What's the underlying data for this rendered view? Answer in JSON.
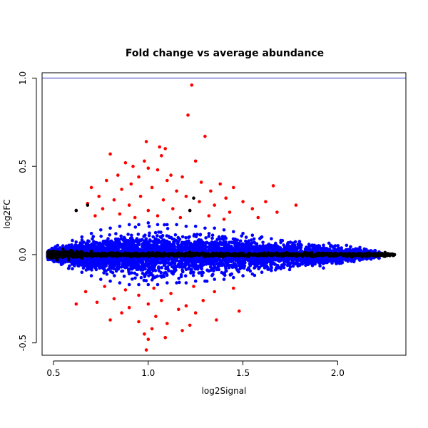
{
  "chart_data": {
    "type": "scatter",
    "title": "Fold change vs average abundance",
    "xlabel": "log2Signal",
    "ylabel": "log2FC",
    "xlim": [
      0.44,
      2.36
    ],
    "ylim": [
      -0.57,
      1.03
    ],
    "x_ticks": [
      0.5,
      1.0,
      1.5,
      2.0
    ],
    "x_tick_labels": [
      "0.5",
      "1.0",
      "1.5",
      "2.0"
    ],
    "y_ticks": [
      -0.5,
      0.0,
      0.5,
      1.0
    ],
    "y_tick_labels": [
      "-0.5",
      "0.0",
      "0.5",
      "1.0"
    ],
    "grid": false,
    "reference_line": {
      "orientation": "horizontal",
      "y": 1.0,
      "color": "#3c3cc8"
    },
    "point_colors": {
      "black": "#000000",
      "blue": "#0000ff",
      "red": "#ff0000"
    },
    "series": [
      {
        "color": "#ff0000",
        "points": [
          [
            1.23,
            0.96
          ],
          [
            1.21,
            0.79
          ],
          [
            1.3,
            0.67
          ],
          [
            0.99,
            0.64
          ],
          [
            1.06,
            0.61
          ],
          [
            1.09,
            0.6
          ],
          [
            0.8,
            0.57
          ],
          [
            1.07,
            0.56
          ],
          [
            0.88,
            0.52
          ],
          [
            0.98,
            0.53
          ],
          [
            1.25,
            0.53
          ],
          [
            0.92,
            0.5
          ],
          [
            1.0,
            0.49
          ],
          [
            1.05,
            0.48
          ],
          [
            1.12,
            0.45
          ],
          [
            0.84,
            0.45
          ],
          [
            0.95,
            0.44
          ],
          [
            1.18,
            0.44
          ],
          [
            1.1,
            0.42
          ],
          [
            0.78,
            0.42
          ],
          [
            1.28,
            0.41
          ],
          [
            0.91,
            0.4
          ],
          [
            1.38,
            0.4
          ],
          [
            1.02,
            0.38
          ],
          [
            1.45,
            0.38
          ],
          [
            0.7,
            0.38
          ],
          [
            0.86,
            0.37
          ],
          [
            1.15,
            0.36
          ],
          [
            1.33,
            0.36
          ],
          [
            1.66,
            0.39
          ],
          [
            0.74,
            0.33
          ],
          [
            0.96,
            0.33
          ],
          [
            1.2,
            0.33
          ],
          [
            1.41,
            0.32
          ],
          [
            0.82,
            0.31
          ],
          [
            1.08,
            0.31
          ],
          [
            1.27,
            0.3
          ],
          [
            1.5,
            0.3
          ],
          [
            1.62,
            0.3
          ],
          [
            0.68,
            0.29
          ],
          [
            1.78,
            0.28
          ],
          [
            0.9,
            0.28
          ],
          [
            1.35,
            0.28
          ],
          [
            0.76,
            0.26
          ],
          [
            1.13,
            0.26
          ],
          [
            1.55,
            0.26
          ],
          [
            0.62,
            0.25
          ],
          [
            1.0,
            0.25
          ],
          [
            1.22,
            0.25
          ],
          [
            1.43,
            0.24
          ],
          [
            1.68,
            0.24
          ],
          [
            0.85,
            0.23
          ],
          [
            1.05,
            0.22
          ],
          [
            1.32,
            0.22
          ],
          [
            0.72,
            0.22
          ],
          [
            1.58,
            0.21
          ],
          [
            0.93,
            0.21
          ],
          [
            1.17,
            0.21
          ],
          [
            1.4,
            0.2
          ],
          [
            0.77,
            -0.18
          ],
          [
            0.88,
            -0.2
          ],
          [
            1.03,
            -0.19
          ],
          [
            1.24,
            -0.18
          ],
          [
            1.45,
            -0.19
          ],
          [
            0.67,
            -0.21
          ],
          [
            0.95,
            -0.23
          ],
          [
            1.12,
            -0.22
          ],
          [
            1.35,
            -0.21
          ],
          [
            0.82,
            -0.25
          ],
          [
            1.07,
            -0.26
          ],
          [
            1.29,
            -0.26
          ],
          [
            0.73,
            -0.27
          ],
          [
            1.0,
            -0.28
          ],
          [
            1.2,
            -0.29
          ],
          [
            0.9,
            -0.3
          ],
          [
            1.16,
            -0.31
          ],
          [
            0.62,
            -0.28
          ],
          [
            0.86,
            -0.33
          ],
          [
            1.04,
            -0.35
          ],
          [
            1.25,
            -0.33
          ],
          [
            1.48,
            -0.32
          ],
          [
            0.95,
            -0.38
          ],
          [
            1.1,
            -0.39
          ],
          [
            0.8,
            -0.37
          ],
          [
            1.36,
            -0.37
          ],
          [
            1.02,
            -0.42
          ],
          [
            1.22,
            -0.4
          ],
          [
            0.98,
            -0.45
          ],
          [
            1.18,
            -0.43
          ],
          [
            1.0,
            -0.48
          ],
          [
            1.09,
            -0.47
          ],
          [
            0.99,
            -0.54
          ]
        ]
      },
      {
        "color": "#0000ff",
        "points": [
          [
            0.55,
            0.05
          ],
          [
            0.6,
            0.08
          ],
          [
            0.65,
            0.1
          ],
          [
            0.7,
            0.12
          ],
          [
            0.75,
            0.14
          ],
          [
            0.8,
            0.15
          ],
          [
            0.85,
            0.16
          ],
          [
            0.9,
            0.17
          ],
          [
            0.95,
            0.17
          ],
          [
            1.0,
            0.18
          ],
          [
            1.05,
            0.17
          ],
          [
            1.1,
            0.17
          ],
          [
            1.15,
            0.17
          ],
          [
            1.2,
            0.16
          ],
          [
            1.25,
            0.16
          ],
          [
            1.3,
            0.15
          ],
          [
            1.35,
            0.15
          ],
          [
            1.4,
            0.14
          ],
          [
            1.45,
            0.13
          ],
          [
            1.5,
            0.12
          ],
          [
            1.55,
            0.11
          ],
          [
            1.6,
            0.1
          ],
          [
            1.65,
            0.09
          ],
          [
            1.7,
            0.08
          ],
          [
            1.75,
            0.07
          ],
          [
            1.8,
            0.06
          ],
          [
            1.85,
            0.05
          ],
          [
            1.9,
            0.04
          ],
          [
            1.95,
            0.03
          ],
          [
            2.0,
            0.02
          ],
          [
            2.05,
            0.02
          ],
          [
            2.1,
            0.01
          ],
          [
            0.55,
            -0.05
          ],
          [
            0.6,
            -0.08
          ],
          [
            0.65,
            -0.1
          ],
          [
            0.7,
            -0.12
          ],
          [
            0.75,
            -0.14
          ],
          [
            0.8,
            -0.15
          ],
          [
            0.85,
            -0.16
          ],
          [
            0.9,
            -0.17
          ],
          [
            0.95,
            -0.17
          ],
          [
            1.0,
            -0.17
          ],
          [
            1.05,
            -0.17
          ],
          [
            1.1,
            -0.16
          ],
          [
            1.15,
            -0.16
          ],
          [
            1.2,
            -0.16
          ],
          [
            1.25,
            -0.15
          ],
          [
            1.3,
            -0.15
          ],
          [
            1.35,
            -0.14
          ],
          [
            1.4,
            -0.14
          ],
          [
            1.45,
            -0.13
          ],
          [
            1.5,
            -0.12
          ],
          [
            1.55,
            -0.11
          ],
          [
            1.6,
            -0.1
          ],
          [
            1.65,
            -0.09
          ],
          [
            1.7,
            -0.08
          ],
          [
            1.75,
            -0.07
          ],
          [
            1.8,
            -0.06
          ],
          [
            1.85,
            -0.05
          ],
          [
            1.9,
            -0.04
          ],
          [
            1.95,
            -0.03
          ],
          [
            2.0,
            -0.02
          ],
          [
            2.05,
            -0.02
          ],
          [
            2.1,
            -0.01
          ]
        ]
      },
      {
        "color": "#000000",
        "points": [
          [
            0.48,
            0.01
          ],
          [
            0.5,
            0.02
          ],
          [
            0.52,
            -0.02
          ],
          [
            0.55,
            0.03
          ],
          [
            0.58,
            -0.03
          ],
          [
            0.6,
            0.02
          ],
          [
            0.65,
            -0.02
          ],
          [
            0.7,
            0.02
          ],
          [
            0.75,
            -0.01
          ],
          [
            0.8,
            0.01
          ],
          [
            0.9,
            0.0
          ],
          [
            1.0,
            0.01
          ],
          [
            1.1,
            0.0
          ],
          [
            1.2,
            0.0
          ],
          [
            1.3,
            0.0
          ],
          [
            1.4,
            0.0
          ],
          [
            1.5,
            0.0
          ],
          [
            1.6,
            0.0
          ],
          [
            1.7,
            0.0
          ],
          [
            1.8,
            0.0
          ],
          [
            1.9,
            0.0
          ],
          [
            2.0,
            0.0
          ],
          [
            2.05,
            -0.01
          ],
          [
            2.1,
            0.0
          ],
          [
            2.15,
            -0.01
          ],
          [
            2.2,
            -0.01
          ],
          [
            2.25,
            -0.01
          ],
          [
            2.3,
            0.0
          ],
          [
            0.62,
            0.25
          ],
          [
            0.68,
            0.28
          ],
          [
            1.22,
            0.25
          ],
          [
            1.24,
            0.32
          ],
          [
            0.58,
            -0.02
          ],
          [
            0.52,
            -0.03
          ]
        ]
      }
    ]
  }
}
